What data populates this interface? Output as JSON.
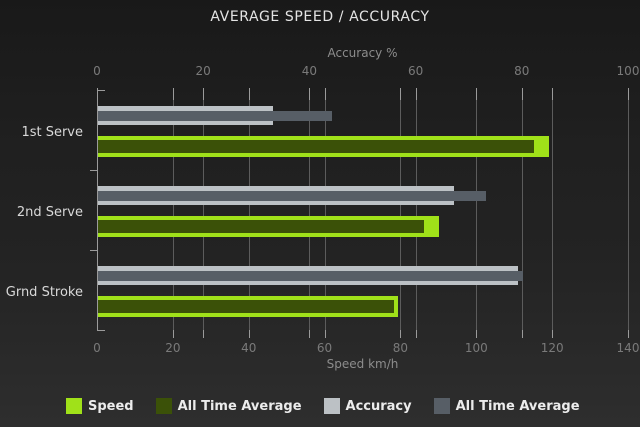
{
  "title": "AVERAGE SPEED / ACCURACY",
  "chart_data": {
    "type": "bar",
    "orientation": "horizontal",
    "categories": [
      "1st Serve",
      "2nd Serve",
      "Grnd Stroke"
    ],
    "axes": {
      "top": {
        "label": "Accuracy %",
        "min": 0,
        "max": 100,
        "ticks": [
          0,
          20,
          40,
          60,
          80,
          100
        ]
      },
      "bottom": {
        "label": "Speed km/h",
        "min": 0,
        "max": 140,
        "ticks": [
          0,
          20,
          40,
          60,
          80,
          100,
          120,
          140
        ]
      }
    },
    "series": [
      {
        "name": "Speed",
        "axis": "bottom",
        "role": "outer",
        "color": "#a0e119",
        "values": [
          119,
          90,
          79
        ]
      },
      {
        "name": "All Time Average",
        "axis": "bottom",
        "role": "inner",
        "color": "#3b5108",
        "values": [
          115,
          86,
          78
        ]
      },
      {
        "name": "Accuracy",
        "axis": "top",
        "role": "outer",
        "color": "#bcc1c5",
        "values": [
          33,
          67,
          79
        ]
      },
      {
        "name": "All Time Average",
        "axis": "top",
        "role": "inner",
        "color": "#575e66",
        "values": [
          44,
          73,
          80
        ]
      }
    ],
    "legend_position": "bottom",
    "grid": true,
    "background": "#222222",
    "gridline_color": "#5c5c5c",
    "axis_color": "#9b9b9b"
  }
}
